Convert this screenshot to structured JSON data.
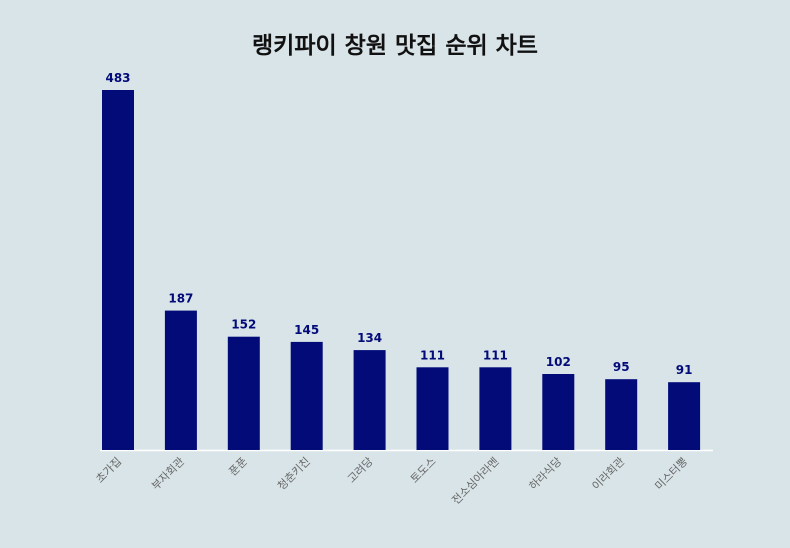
{
  "chart_data": {
    "type": "bar",
    "title": "랭키파이 창원 맛집 순위 차트",
    "categories": [
      "초가집",
      "부자회관",
      "푼푼",
      "청춘키친",
      "고려당",
      "토도스",
      "전소심아라멘",
      "하라식당",
      "이라회관",
      "미스터뽕"
    ],
    "values": [
      483,
      187,
      152,
      145,
      134,
      111,
      111,
      102,
      95,
      91
    ],
    "xlabel": "",
    "ylabel": "",
    "ylim": [
      0,
      483
    ],
    "grid": false,
    "legend": "none",
    "colors": {
      "bar": "#020b78",
      "value_label": "#020b78",
      "tick_label": "#666666",
      "axis_line": "#ffffff",
      "background": "#d9e4e8",
      "title": "#111111"
    }
  }
}
